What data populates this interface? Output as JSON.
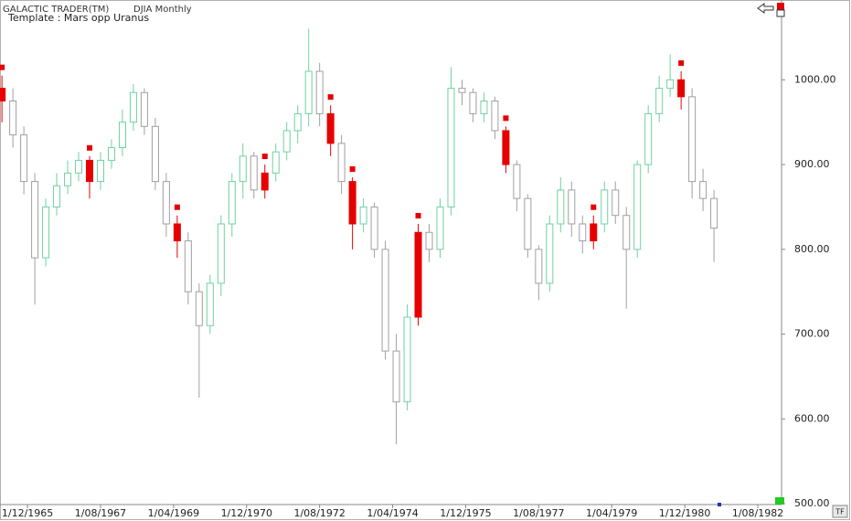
{
  "chart_data": {
    "type": "candlestick",
    "title": "GALACTIC TRADER(TM)",
    "subtitle": "DJIA Monthly",
    "annotation": "Template : Mars opp Uranus",
    "x": [
      "1965-05-01",
      "1965-08-01",
      "1965-11-01",
      "1966-02-01",
      "1966-05-01",
      "1966-08-01",
      "1966-11-01",
      "1967-02-01",
      "1967-05-01",
      "1967-08-01",
      "1967-11-01",
      "1968-02-01",
      "1968-05-01",
      "1968-08-01",
      "1968-11-01",
      "1969-02-01",
      "1969-05-01",
      "1969-08-01",
      "1969-11-01",
      "1970-02-01",
      "1970-05-01",
      "1970-08-01",
      "1970-11-01",
      "1971-02-01",
      "1971-05-01",
      "1971-08-01",
      "1971-11-01",
      "1972-02-01",
      "1972-05-01",
      "1972-08-01",
      "1972-11-01",
      "1973-02-01",
      "1973-05-01",
      "1973-08-01",
      "1973-11-01",
      "1974-02-01",
      "1974-05-01",
      "1974-08-01",
      "1974-11-01",
      "1975-02-01",
      "1975-05-01",
      "1975-08-01",
      "1975-11-01",
      "1976-02-01",
      "1976-05-01",
      "1976-08-01",
      "1976-11-01",
      "1977-02-01",
      "1977-05-01",
      "1977-08-01",
      "1977-11-01",
      "1978-02-01",
      "1978-05-01",
      "1978-08-01",
      "1978-11-01",
      "1979-02-01",
      "1979-05-01",
      "1979-08-01",
      "1979-11-01",
      "1980-02-01",
      "1980-05-01",
      "1980-08-01",
      "1980-11-01",
      "1981-02-01",
      "1981-05-01",
      "1981-08-01"
    ],
    "open": [
      990,
      975,
      935,
      880,
      790,
      850,
      875,
      890,
      905,
      880,
      905,
      920,
      950,
      985,
      945,
      880,
      830,
      810,
      750,
      710,
      760,
      830,
      880,
      910,
      870,
      890,
      915,
      940,
      960,
      1010,
      960,
      925,
      880,
      830,
      850,
      800,
      680,
      620,
      720,
      820,
      800,
      850,
      990,
      985,
      960,
      975,
      940,
      900,
      860,
      800,
      760,
      830,
      870,
      830,
      810,
      830,
      870,
      840,
      800,
      900,
      960,
      990,
      1000,
      980,
      880,
      860
    ],
    "high": [
      1005,
      990,
      945,
      890,
      860,
      890,
      905,
      915,
      910,
      915,
      930,
      965,
      995,
      990,
      955,
      890,
      840,
      820,
      760,
      770,
      840,
      890,
      925,
      915,
      900,
      925,
      950,
      970,
      1060,
      1020,
      970,
      935,
      885,
      860,
      855,
      810,
      700,
      735,
      830,
      830,
      860,
      1015,
      1000,
      990,
      985,
      980,
      945,
      905,
      865,
      805,
      840,
      885,
      880,
      840,
      840,
      880,
      880,
      850,
      905,
      970,
      1005,
      1030,
      1010,
      990,
      895,
      870
    ],
    "low": [
      950,
      920,
      865,
      735,
      780,
      840,
      865,
      880,
      860,
      870,
      895,
      910,
      940,
      935,
      870,
      815,
      790,
      735,
      625,
      700,
      745,
      815,
      860,
      860,
      860,
      880,
      905,
      925,
      945,
      945,
      910,
      865,
      800,
      820,
      790,
      670,
      570,
      610,
      710,
      785,
      790,
      840,
      970,
      950,
      950,
      930,
      890,
      845,
      790,
      740,
      750,
      820,
      815,
      795,
      800,
      820,
      830,
      730,
      790,
      890,
      950,
      980,
      965,
      860,
      845,
      785
    ],
    "close": [
      975,
      935,
      880,
      790,
      850,
      875,
      890,
      905,
      880,
      905,
      920,
      950,
      985,
      945,
      880,
      830,
      810,
      750,
      710,
      760,
      830,
      880,
      910,
      870,
      890,
      915,
      940,
      960,
      1010,
      960,
      925,
      880,
      830,
      850,
      800,
      680,
      620,
      720,
      820,
      800,
      850,
      990,
      985,
      960,
      975,
      940,
      900,
      860,
      800,
      760,
      830,
      870,
      830,
      810,
      830,
      870,
      840,
      800,
      900,
      960,
      990,
      1000,
      980,
      880,
      860,
      825
    ],
    "colors": [
      "#e60000",
      "#a0a0a0",
      "#a0a0a0",
      "#a0a0a0",
      "#6fd3a0",
      "#6fd3a0",
      "#6fd3a0",
      "#6fd3a0",
      "#e60000",
      "#6fd3a0",
      "#6fd3a0",
      "#6fd3a0",
      "#6fd3a0",
      "#a0a0a0",
      "#a0a0a0",
      "#a0a0a0",
      "#e60000",
      "#a0a0a0",
      "#a0a0a0",
      "#6fd3a0",
      "#6fd3a0",
      "#6fd3a0",
      "#6fd3a0",
      "#a0a0a0",
      "#e60000",
      "#6fd3a0",
      "#6fd3a0",
      "#6fd3a0",
      "#6fd3a0",
      "#a0a0a0",
      "#e60000",
      "#a0a0a0",
      "#e60000",
      "#6fd3a0",
      "#a0a0a0",
      "#a0a0a0",
      "#a0a0a0",
      "#6fd3a0",
      "#e60000",
      "#a0a0a0",
      "#6fd3a0",
      "#6fd3a0",
      "#a0a0a0",
      "#a0a0a0",
      "#6fd3a0",
      "#a0a0a0",
      "#e60000",
      "#a0a0a0",
      "#a0a0a0",
      "#a0a0a0",
      "#6fd3a0",
      "#6fd3a0",
      "#a0a0a0",
      "#a0a0a0",
      "#e60000",
      "#6fd3a0",
      "#a0a0a0",
      "#a0a0a0",
      "#6fd3a0",
      "#6fd3a0",
      "#6fd3a0",
      "#6fd3a0",
      "#e60000",
      "#a0a0a0",
      "#a0a0a0",
      "#a0a0a0"
    ],
    "signal_color": "#e60000",
    "xlim": [
      "1965-04-15",
      "1983-02-16"
    ],
    "xticks": [
      {
        "value": "1965-12-01",
        "label": "1/12/1965"
      },
      {
        "value": "1967-08-01",
        "label": "1/08/1967"
      },
      {
        "value": "1969-04-01",
        "label": "1/04/1969"
      },
      {
        "value": "1970-12-01",
        "label": "1/12/1970"
      },
      {
        "value": "1972-08-01",
        "label": "1/08/1972"
      },
      {
        "value": "1974-04-01",
        "label": "1/04/1974"
      },
      {
        "value": "1975-12-01",
        "label": "1/12/1975"
      },
      {
        "value": "1977-08-01",
        "label": "1/08/1977"
      },
      {
        "value": "1979-04-01",
        "label": "1/04/1979"
      },
      {
        "value": "1980-12-01",
        "label": "1/12/1980"
      },
      {
        "value": "1982-08-01",
        "label": "1/08/1982"
      }
    ],
    "ylim": [
      500,
      1092
    ],
    "yticks": [
      {
        "value": 500,
        "label": "500.00"
      },
      {
        "value": 600,
        "label": "600.00"
      },
      {
        "value": 700,
        "label": "700.00"
      },
      {
        "value": 800,
        "label": "800.00"
      },
      {
        "value": 900,
        "label": "900.00"
      },
      {
        "value": 1000,
        "label": "1000.00"
      }
    ]
  },
  "toolbar": {
    "tf_button": "TF"
  }
}
